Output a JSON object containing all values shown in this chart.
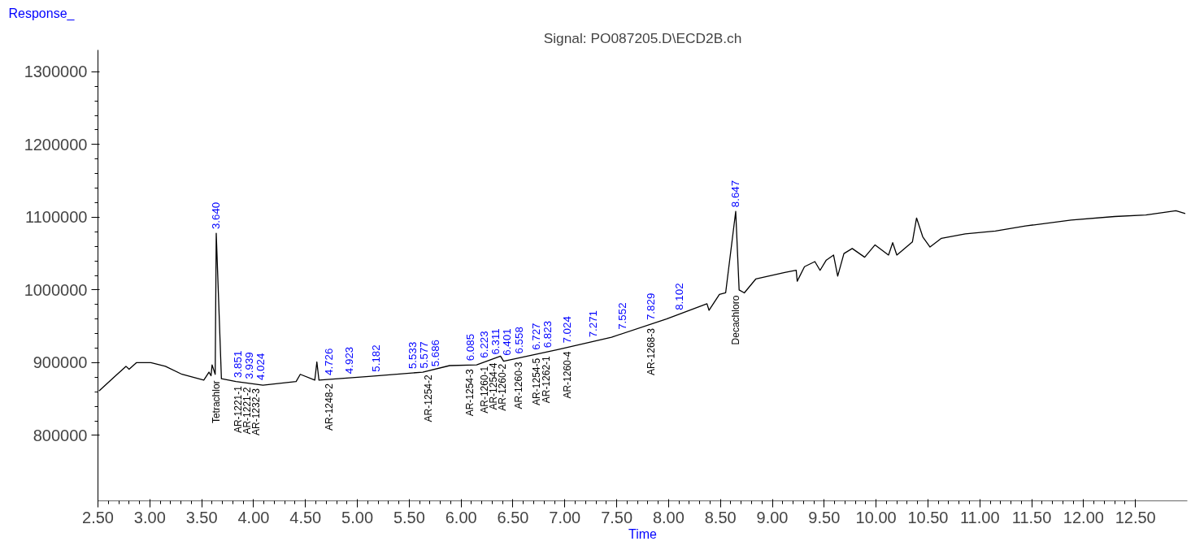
{
  "chart_data": {
    "type": "line",
    "title": "Signal: PO087205.D\\ECD2B.ch",
    "xlabel": "Time",
    "ylabel": "Response_",
    "x": [
      2.51,
      2.67,
      2.77,
      2.8,
      2.87,
      3.01,
      3.15,
      3.31,
      3.52,
      3.57,
      3.59,
      3.6,
      3.63,
      3.64,
      3.69,
      3.83,
      4.09,
      4.41,
      4.45,
      4.59,
      4.61,
      4.63,
      5.11,
      5.63,
      5.89,
      6.15,
      6.38,
      6.41,
      6.93,
      7.45,
      7.98,
      8.37,
      8.39,
      8.49,
      8.55,
      8.647,
      8.68,
      8.73,
      8.84,
      9.12,
      9.23,
      9.24,
      9.31,
      9.41,
      9.46,
      9.52,
      9.59,
      9.63,
      9.69,
      9.77,
      9.89,
      9.99,
      10.12,
      10.16,
      10.2,
      10.35,
      10.39,
      10.45,
      10.52,
      10.63,
      10.86,
      11.15,
      11.44,
      11.88,
      12.3,
      12.6,
      12.89,
      12.98
    ],
    "series": [
      {
        "color": "#000000",
        "values": [
          861000,
          882000,
          895000,
          891000,
          900000,
          900000,
          895000,
          884000,
          876000,
          887000,
          882000,
          897000,
          884000,
          1078000,
          878000,
          874000,
          869000,
          874000,
          884000,
          876000,
          901000,
          876000,
          881000,
          887000,
          896000,
          897000,
          909000,
          902000,
          918000,
          935000,
          960000,
          981000,
          972000,
          994000,
          996000,
          1108000,
          1000000,
          996000,
          1015000,
          1024000,
          1027000,
          1012000,
          1032000,
          1039000,
          1027000,
          1041000,
          1048000,
          1019000,
          1050000,
          1057000,
          1045000,
          1062000,
          1048000,
          1065000,
          1048000,
          1066000,
          1099000,
          1073000,
          1059000,
          1071000,
          1077000,
          1081000,
          1088000,
          1096000,
          1101000,
          1103000,
          1109000,
          1105000
        ]
      }
    ],
    "xlim": [
      2.5,
      13.0
    ],
    "xticks": [
      {
        "value": 2.5,
        "label": "2.50"
      },
      {
        "value": 3.0,
        "label": "3.00"
      },
      {
        "value": 3.5,
        "label": "3.50"
      },
      {
        "value": 4.0,
        "label": "4.00"
      },
      {
        "value": 4.5,
        "label": "4.50"
      },
      {
        "value": 5.0,
        "label": "5.00"
      },
      {
        "value": 5.5,
        "label": "5.50"
      },
      {
        "value": 6.0,
        "label": "6.00"
      },
      {
        "value": 6.5,
        "label": "6.50"
      },
      {
        "value": 7.0,
        "label": "7.00"
      },
      {
        "value": 7.5,
        "label": "7.50"
      },
      {
        "value": 8.0,
        "label": "8.00"
      },
      {
        "value": 8.5,
        "label": "8.50"
      },
      {
        "value": 9.0,
        "label": "9.00"
      },
      {
        "value": 9.5,
        "label": "9.50"
      },
      {
        "value": 10.0,
        "label": "10.00"
      },
      {
        "value": 10.5,
        "label": "10.50"
      },
      {
        "value": 11.0,
        "label": "11.00"
      },
      {
        "value": 11.5,
        "label": "11.50"
      },
      {
        "value": 12.0,
        "label": "12.00"
      },
      {
        "value": 12.5,
        "label": "12.50"
      }
    ],
    "ylim": [
      710000,
      1330000
    ],
    "yticks": [
      800000,
      900000,
      1000000,
      1100000,
      1200000,
      1300000
    ],
    "grid": false,
    "line_style": "solid",
    "annotations": [
      {
        "text": "3.640",
        "x": 3.64,
        "y": 1078000
      },
      {
        "text": "3.851",
        "x": 3.851,
        "y": 873600
      },
      {
        "text": "3.939",
        "x": 3.939,
        "y": 871900
      },
      {
        "text": "4.024",
        "x": 4.024,
        "y": 870300
      },
      {
        "text": "4.726",
        "x": 4.726,
        "y": 877000
      },
      {
        "text": "4.923",
        "x": 4.923,
        "y": 879100
      },
      {
        "text": "5.182",
        "x": 5.182,
        "y": 881800
      },
      {
        "text": "5.533",
        "x": 5.533,
        "y": 885900
      },
      {
        "text": "5.577",
        "x": 5.577,
        "y": 886400
      },
      {
        "text": "5.686",
        "x": 5.686,
        "y": 888900
      },
      {
        "text": "6.085",
        "x": 6.085,
        "y": 896800
      },
      {
        "text": "6.223",
        "x": 6.223,
        "y": 900800
      },
      {
        "text": "6.311",
        "x": 6.311,
        "y": 905400
      },
      {
        "text": "6.401",
        "x": 6.401,
        "y": 904100
      },
      {
        "text": "6.558",
        "x": 6.558,
        "y": 906600
      },
      {
        "text": "6.727",
        "x": 6.727,
        "y": 911800
      },
      {
        "text": "6.823",
        "x": 6.823,
        "y": 914700
      },
      {
        "text": "7.024",
        "x": 7.024,
        "y": 921100
      },
      {
        "text": "7.271",
        "x": 7.271,
        "y": 929100
      },
      {
        "text": "7.552",
        "x": 7.552,
        "y": 939800
      },
      {
        "text": "7.829",
        "x": 7.829,
        "y": 952900
      },
      {
        "text": "8.102",
        "x": 8.102,
        "y": 966600
      },
      {
        "text": "8.647",
        "x": 8.647,
        "y": 1108000
      },
      {
        "text": "Tetrachlor",
        "x": 3.64,
        "y": 881000
      },
      {
        "text": "AR-1221-1",
        "x": 3.851,
        "y": 873600
      },
      {
        "text": "AR-1221-2",
        "x": 3.939,
        "y": 871900
      },
      {
        "text": "AR-1232-3",
        "x": 4.024,
        "y": 870300
      },
      {
        "text": "AR-1248-2",
        "x": 4.726,
        "y": 877000
      },
      {
        "text": "AR-1254-2",
        "x": 5.686,
        "y": 888900
      },
      {
        "text": "AR-1254-3",
        "x": 6.085,
        "y": 896800
      },
      {
        "text": "AR-1260-1",
        "x": 6.223,
        "y": 900800
      },
      {
        "text": "AR-1254-4",
        "x": 6.311,
        "y": 905400
      },
      {
        "text": "AR-1260-2",
        "x": 6.401,
        "y": 904100
      },
      {
        "text": "AR-1260-3",
        "x": 6.558,
        "y": 906600
      },
      {
        "text": "AR-1254-5",
        "x": 6.727,
        "y": 911800
      },
      {
        "text": "AR-1262-1",
        "x": 6.823,
        "y": 914700
      },
      {
        "text": "AR-1260-4",
        "x": 7.024,
        "y": 921100
      },
      {
        "text": "AR-1268-3",
        "x": 7.829,
        "y": 952900
      },
      {
        "text": "Decachloro",
        "x": 8.647,
        "y": 998000
      }
    ]
  }
}
